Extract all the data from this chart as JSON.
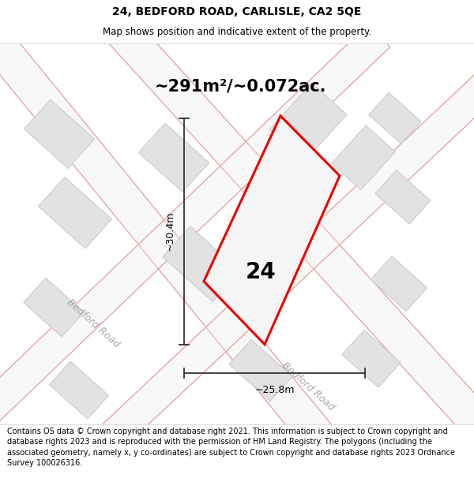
{
  "title": "24, BEDFORD ROAD, CARLISLE, CA2 5QE",
  "subtitle": "Map shows position and indicative extent of the property.",
  "footer": "Contains OS data © Crown copyright and database right 2021. This information is subject to Crown copyright and database rights 2023 and is reproduced with the permission of HM Land Registry. The polygons (including the associated geometry, namely x, y co-ordinates) are subject to Crown copyright and database rights 2023 Ordnance Survey 100026316.",
  "area_label": "~291m²/~0.072ac.",
  "width_label": "~25.8m",
  "height_label": "~30.4m",
  "number_label": "24",
  "map_bg": "#f2f2f2",
  "road_fill": "#f8f8f8",
  "road_edge": "#e8aaaa",
  "building_color": "#e2e2e2",
  "building_edge": "#c8c8c8",
  "plot_edge": "#ee0000",
  "plot_fill": "#f5f5f5",
  "dim_color": "#333333",
  "road_label_color": "#aaaaaa",
  "title_fontsize": 10,
  "subtitle_fontsize": 8.5,
  "footer_fontsize": 7.0,
  "area_fontsize": 15,
  "dim_fontsize": 9,
  "number_fontsize": 20,
  "road_label_fontsize": 9
}
